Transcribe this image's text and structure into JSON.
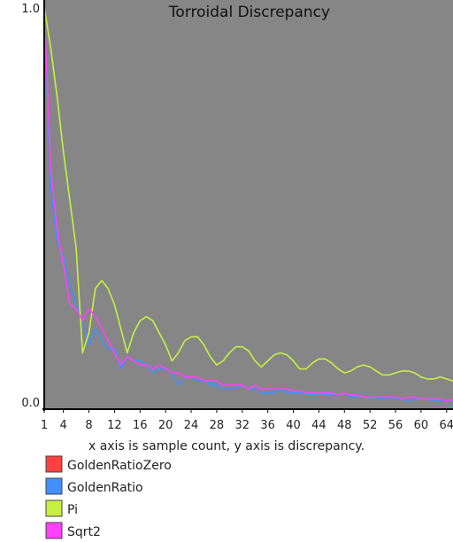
{
  "chart_data": {
    "type": "line",
    "title": "Torroidal Discrepancy",
    "caption": "x axis is sample count, y axis is discrepancy.",
    "xlim": [
      1,
      65
    ],
    "ylim": [
      0.0,
      1.0
    ],
    "x_ticks": [
      "1",
      "4",
      "8",
      "12",
      "16",
      "20",
      "24",
      "28",
      "32",
      "36",
      "40",
      "44",
      "48",
      "52",
      "56",
      "60",
      "64"
    ],
    "y_ticks": [
      "0.0",
      "1.0"
    ],
    "background_color": "#868686",
    "series": [
      {
        "name": "GoldenRatioZero",
        "color": "#ff4040",
        "values": []
      },
      {
        "name": "GoldenRatio",
        "color": "#4090ff",
        "values": [
          1.0,
          0.55,
          0.42,
          0.38,
          0.31,
          0.26,
          0.22,
          0.16,
          0.2,
          0.17,
          0.15,
          0.15,
          0.1,
          0.13,
          0.12,
          0.12,
          0.11,
          0.09,
          0.1,
          0.1,
          0.09,
          0.06,
          0.08,
          0.08,
          0.07,
          0.07,
          0.06,
          0.06,
          0.05,
          0.05,
          0.05,
          0.06,
          0.05,
          0.05,
          0.04,
          0.04,
          0.04,
          0.05,
          0.04,
          0.04,
          0.04,
          0.04,
          0.035,
          0.04,
          0.035,
          0.035,
          0.035,
          0.04,
          0.03,
          0.03,
          0.03,
          0.03,
          0.03,
          0.025,
          0.03,
          0.025,
          0.025,
          0.02,
          0.025,
          0.025,
          0.025,
          0.02,
          0.02,
          0.02,
          0.02
        ]
      },
      {
        "name": "Pi",
        "color": "#c8f040",
        "values": [
          1.0,
          0.9,
          0.78,
          0.64,
          0.52,
          0.4,
          0.14,
          0.19,
          0.3,
          0.32,
          0.3,
          0.26,
          0.2,
          0.14,
          0.19,
          0.22,
          0.23,
          0.22,
          0.19,
          0.16,
          0.12,
          0.14,
          0.17,
          0.18,
          0.18,
          0.16,
          0.13,
          0.11,
          0.12,
          0.14,
          0.155,
          0.155,
          0.145,
          0.12,
          0.105,
          0.12,
          0.135,
          0.14,
          0.135,
          0.12,
          0.1,
          0.1,
          0.115,
          0.125,
          0.125,
          0.115,
          0.1,
          0.09,
          0.095,
          0.105,
          0.11,
          0.105,
          0.095,
          0.085,
          0.085,
          0.09,
          0.095,
          0.095,
          0.09,
          0.08,
          0.075,
          0.075,
          0.08,
          0.075,
          0.07
        ]
      },
      {
        "name": "Sqrt2",
        "color": "#ff40ff",
        "values": [
          1.0,
          0.6,
          0.45,
          0.36,
          0.26,
          0.25,
          0.22,
          0.25,
          0.23,
          0.2,
          0.17,
          0.14,
          0.11,
          0.13,
          0.12,
          0.11,
          0.11,
          0.1,
          0.11,
          0.1,
          0.09,
          0.09,
          0.08,
          0.08,
          0.08,
          0.07,
          0.07,
          0.07,
          0.06,
          0.06,
          0.06,
          0.06,
          0.05,
          0.06,
          0.05,
          0.05,
          0.05,
          0.05,
          0.05,
          0.045,
          0.045,
          0.04,
          0.04,
          0.04,
          0.04,
          0.04,
          0.035,
          0.04,
          0.035,
          0.035,
          0.03,
          0.03,
          0.03,
          0.03,
          0.03,
          0.03,
          0.025,
          0.03,
          0.03,
          0.025,
          0.025,
          0.025,
          0.025,
          0.02,
          0.025
        ]
      }
    ]
  }
}
